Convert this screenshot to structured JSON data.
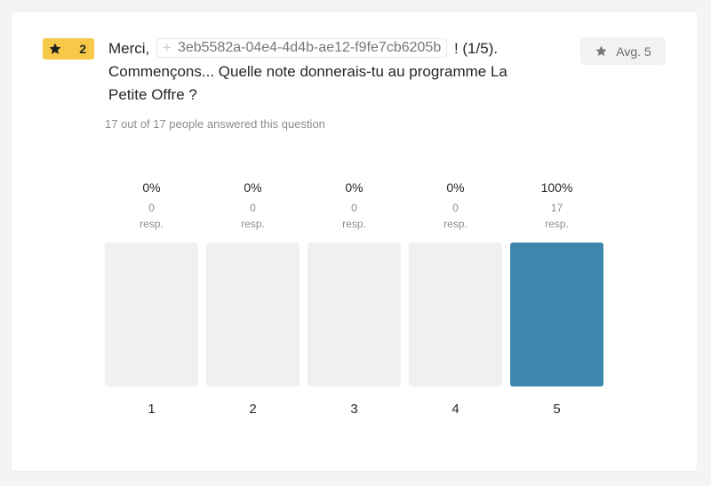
{
  "question": {
    "number": "2",
    "title_before": "Merci,",
    "variable_token": "3eb5582a-04e4-4d4b-ae12-f9fe7cb6205b",
    "title_after_line1": "! (1/5).",
    "title_line2": "Commençons... Quelle note donnerais-tu au programme La",
    "title_line3": "Petite Offre ?",
    "answered_text": "17 out of 17 people answered this question",
    "avg_label": "Avg. 5"
  },
  "icons": {
    "badge_icon": "star-icon",
    "avg_icon": "star-icon",
    "variable_icon": "plus-icon"
  },
  "colors": {
    "badge": "#f7c948",
    "bar_filled": "#3d86ae",
    "bar_empty": "#f0f0f0"
  },
  "chart_data": {
    "type": "bar",
    "categories": [
      "1",
      "2",
      "3",
      "4",
      "5"
    ],
    "values": [
      0,
      0,
      0,
      0,
      17
    ],
    "percent_labels": [
      "0%",
      "0%",
      "0%",
      "0%",
      "100%"
    ],
    "count_labels": [
      "0",
      "0",
      "0",
      "0",
      "17"
    ],
    "resp_label": "resp.",
    "total": 17,
    "ylim": [
      0,
      17
    ]
  }
}
